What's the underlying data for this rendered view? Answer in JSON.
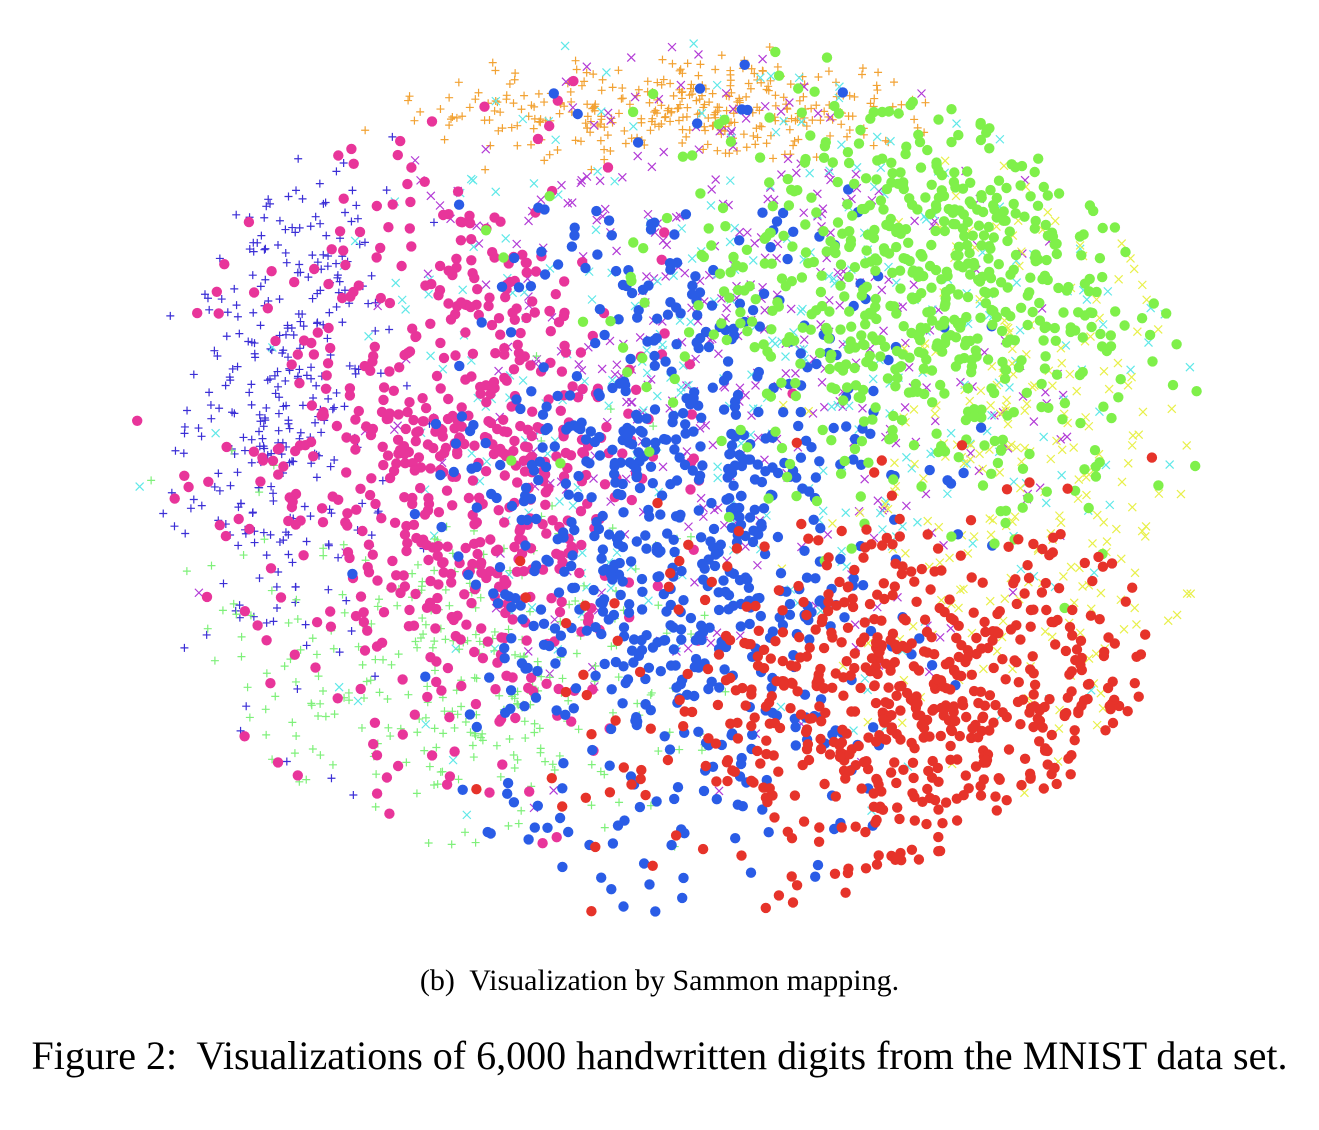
{
  "subcaption": "(b)  Visualization by Sammon mapping.",
  "caption": "Figure 2:  Visualizations of 6,000 handwritten digits from the MNIST data set.",
  "chart_data": {
    "type": "scatter",
    "title": "",
    "xlabel": "",
    "ylabel": "",
    "xlim": [
      -1,
      1
    ],
    "ylim": [
      -1,
      1
    ],
    "grid": false,
    "legend": "none",
    "axes_visible": false,
    "series": [
      {
        "marker": "plus",
        "color": "#f2a233",
        "cx": 0.04,
        "cy": 0.84,
        "sx": 0.24,
        "sy": 0.06,
        "count": 340
      },
      {
        "marker": "plus",
        "color": "#3b2fd6",
        "cx": -0.7,
        "cy": 0.18,
        "sx": 0.09,
        "sy": 0.3,
        "count": 330
      },
      {
        "marker": "dot",
        "color": "#e8359a",
        "cx": -0.38,
        "cy": 0.05,
        "sx": 0.19,
        "sy": 0.33,
        "count": 650
      },
      {
        "marker": "dot",
        "color": "#2a5ce6",
        "cx": 0.02,
        "cy": -0.12,
        "sx": 0.2,
        "sy": 0.4,
        "count": 720
      },
      {
        "marker": "dot",
        "color": "#7ff04a",
        "cx": 0.5,
        "cy": 0.45,
        "sx": 0.26,
        "sy": 0.24,
        "count": 640
      },
      {
        "marker": "dot",
        "color": "#e6332a",
        "cx": 0.45,
        "cy": -0.52,
        "sx": 0.24,
        "sy": 0.2,
        "count": 620
      },
      {
        "marker": "cross",
        "color": "#b23ad6",
        "cx": 0.15,
        "cy": 0.3,
        "sx": 0.28,
        "sy": 0.38,
        "count": 380
      },
      {
        "marker": "cross",
        "color": "#5fe8e8",
        "cx": 0.2,
        "cy": 0.25,
        "sx": 0.45,
        "sy": 0.4,
        "count": 320
      },
      {
        "marker": "cross",
        "color": "#e8f04a",
        "cx": 0.68,
        "cy": 0.05,
        "sx": 0.16,
        "sy": 0.35,
        "count": 240
      },
      {
        "marker": "plus",
        "color": "#7ff07a",
        "cx": -0.4,
        "cy": -0.45,
        "sx": 0.22,
        "sy": 0.22,
        "count": 300
      }
    ]
  }
}
